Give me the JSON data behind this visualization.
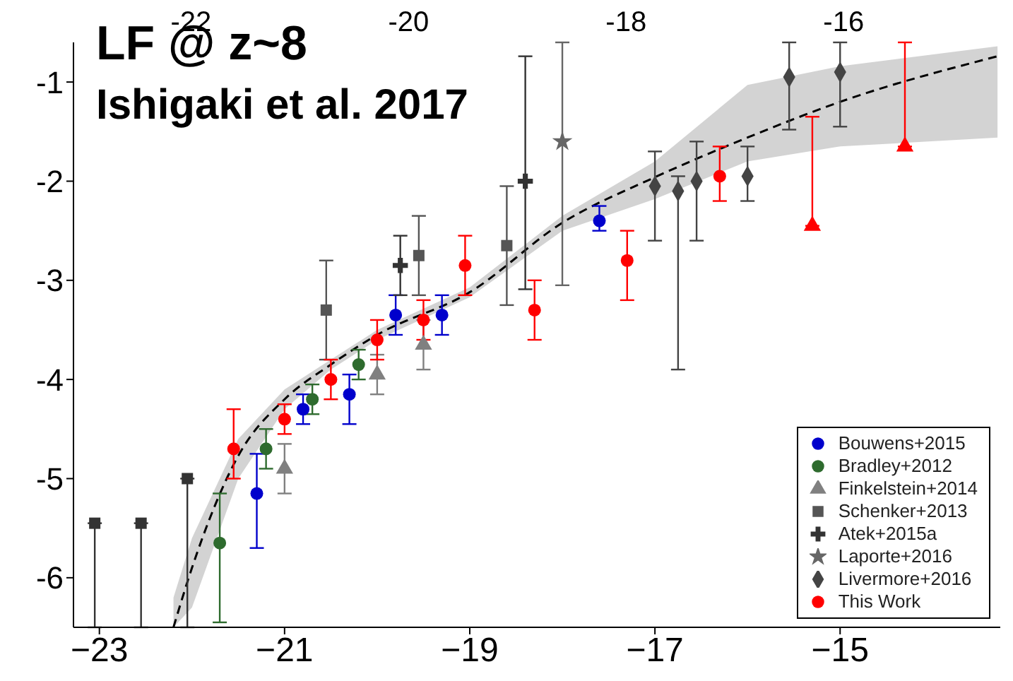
{
  "chart_data": {
    "type": "scatter",
    "annotations": [
      "LF @ z~8",
      "Ishigaki et al. 2017"
    ],
    "xlim": [
      -23.28,
      -13.27
    ],
    "xticks": [
      {
        "value": -23,
        "label": "−23"
      },
      {
        "value": -21,
        "label": "−21"
      },
      {
        "value": -19,
        "label": "−19"
      },
      {
        "value": -17,
        "label": "−17"
      },
      {
        "value": -15,
        "label": "−15"
      }
    ],
    "x2lim": [
      -23.08,
      -14.56
    ],
    "x2ticks": [
      -22,
      -20,
      -18,
      -16
    ],
    "ylim": [
      -6.5,
      -0.6
    ],
    "yticks": [
      -6,
      -5,
      -4,
      -3,
      -2,
      -1
    ],
    "legend": "bottom right",
    "series": [
      {
        "name": "Bouwens+2015",
        "color": "#0000cc",
        "marker": "circle",
        "x": [
          -21.3,
          -20.8,
          -20.3,
          -19.8,
          -19.3,
          -17.6
        ],
        "values": [
          -5.15,
          -4.3,
          -4.15,
          -3.35,
          -3.35,
          -2.4
        ],
        "errors": [
          [
            -5.7,
            -4.75
          ],
          0.15,
          [
            -4.45,
            -3.95
          ],
          0.2,
          0.2,
          [
            -2.5,
            -2.25
          ]
        ]
      },
      {
        "name": "Bradley+2012",
        "color": "#2e6b2e",
        "marker": "circle",
        "x": [
          -21.7,
          -21.2,
          -20.7,
          -20.2
        ],
        "values": [
          -5.65,
          -4.7,
          -4.2,
          -3.85
        ],
        "errors": [
          [
            -6.45,
            -5.15
          ],
          0.2,
          0.15,
          0.15
        ]
      },
      {
        "name": "Finkelstein+2014",
        "color": "#808080",
        "marker": "triangle",
        "x": [
          -21.0,
          -20.0,
          -19.5
        ],
        "values": [
          -4.9,
          -3.95,
          -3.65
        ],
        "errors": [
          0.25,
          0.2,
          0.25
        ]
      },
      {
        "name": "Schenker+2013",
        "color": "#555555",
        "marker": "square",
        "x": [
          -20.55,
          -19.55,
          -18.6
        ],
        "values": [
          -3.3,
          -2.75,
          -2.65
        ],
        "errors": [
          0.5,
          0.4,
          0.6
        ]
      },
      {
        "name": "Atek+2015a",
        "color": "#333333",
        "marker": "cross",
        "x": [
          -19.75,
          -18.4
        ],
        "values": [
          -2.85,
          -2.0
        ],
        "errors": [
          0.3,
          [
            -3.09,
            -0.74
          ]
        ]
      },
      {
        "name": "Laporte+2016",
        "color": "#666666",
        "marker": "star",
        "x": [
          -18.0
        ],
        "values": [
          -1.6
        ],
        "errors": [
          [
            -3.05,
            -0.6
          ]
        ]
      },
      {
        "name": "Livermore+2016",
        "color": "#444444",
        "marker": "diamond",
        "x": [
          -17.0,
          -16.75,
          -16.55,
          -16.0,
          -15.55,
          -15.0
        ],
        "values": [
          -2.05,
          -2.1,
          -2.0,
          -1.95,
          -0.95,
          -0.9
        ],
        "errors": [
          [
            -2.6,
            -1.7
          ],
          [
            -3.9,
            -1.95
          ],
          [
            -2.6,
            -1.6
          ],
          [
            -2.2,
            -1.65
          ],
          [
            -1.48,
            -0.6
          ],
          [
            -1.45,
            -0.6
          ]
        ]
      },
      {
        "name": "This Work",
        "color": "#ff0000",
        "marker": "circle",
        "x": [
          -21.55,
          -21.0,
          -20.5,
          -20.0,
          -19.5,
          -19.05,
          -18.3,
          -17.3,
          -16.3
        ],
        "values": [
          -4.7,
          -4.4,
          -4.0,
          -3.6,
          -3.4,
          -2.85,
          -3.3,
          -2.8,
          -1.95
        ],
        "errors": [
          [
            -5.0,
            -4.3
          ],
          0.15,
          0.2,
          [
            -3.8,
            -3.4
          ],
          0.2,
          0.3,
          0.3,
          [
            -3.2,
            -2.5
          ],
          [
            -2.2,
            -1.65
          ]
        ]
      },
      {
        "color": "#ff0000",
        "marker": "triangle",
        "x": [
          -15.3,
          -14.3
        ],
        "values": [
          -2.45,
          -1.65
        ],
        "errors": [
          [
            -2.45,
            -1.35
          ],
          [
            -1.65,
            -0.6
          ]
        ]
      },
      {
        "color": "#333333",
        "marker": "square",
        "x": [
          -23.05,
          -22.55,
          -22.05
        ],
        "values": [
          -5.45,
          -5.45,
          -5.0
        ],
        "errors": [
          [
            -6.5,
            -5.45
          ],
          [
            -6.5,
            -5.45
          ],
          [
            -6.5,
            -5.0
          ]
        ]
      },
      {
        "type": "line",
        "color": "#000000",
        "line_style": "dashed",
        "marker": "none",
        "x": [
          -22.2,
          -22,
          -21.5,
          -21,
          -20.5,
          -20,
          -19,
          -18,
          -17,
          -16,
          -15,
          -13.3
        ],
        "values": [
          -6.5,
          -5.9,
          -4.77,
          -4.2,
          -3.85,
          -3.55,
          -3.12,
          -2.42,
          -1.96,
          -1.56,
          -1.2,
          -0.74
        ],
        "lower": [
          -6.5,
          -6.3,
          -5.0,
          -4.3,
          -3.9,
          -3.6,
          -3.17,
          -2.5,
          -2.18,
          -1.8,
          -1.65,
          -1.56
        ],
        "upper": [
          -6.2,
          -5.6,
          -4.6,
          -4.1,
          -3.8,
          -3.5,
          -3.07,
          -2.35,
          -1.8,
          -1.03,
          -0.84,
          -0.64
        ]
      }
    ]
  }
}
